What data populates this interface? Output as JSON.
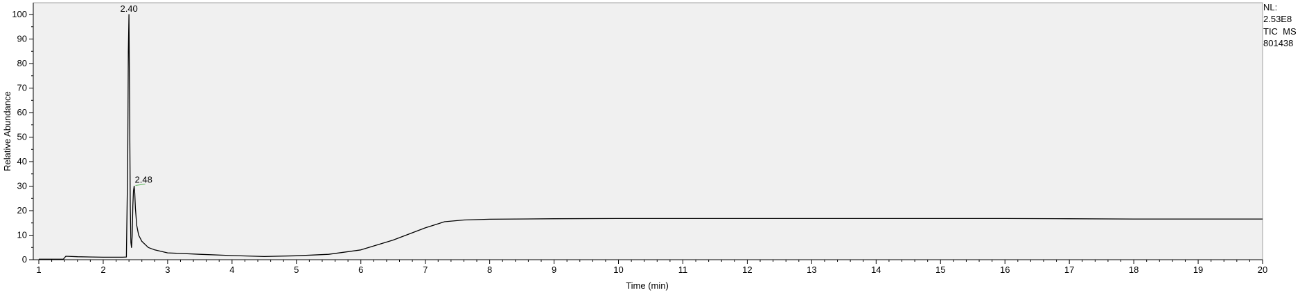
{
  "chart_data": {
    "type": "line",
    "title": "",
    "xlabel": "Time (min)",
    "ylabel": "Relative Abundance",
    "xlim": [
      1,
      20
    ],
    "ylim": [
      0,
      100
    ],
    "x_ticks": [
      "1",
      "2",
      "3",
      "4",
      "5",
      "6",
      "7",
      "8",
      "9",
      "10",
      "11",
      "12",
      "13",
      "14",
      "15",
      "16",
      "17",
      "18",
      "19",
      "20"
    ],
    "y_ticks": [
      "0",
      "10",
      "20",
      "30",
      "40",
      "50",
      "60",
      "70",
      "80",
      "90",
      "100"
    ],
    "grid": false,
    "legend": "none",
    "series": [
      {
        "color": "#000000",
        "x": [
          1.0,
          1.38,
          1.42,
          1.6,
          2.0,
          2.3,
          2.36,
          2.38,
          2.39,
          2.4,
          2.41,
          2.42,
          2.43,
          2.44,
          2.45,
          2.46,
          2.47,
          2.48,
          2.49,
          2.5,
          2.52,
          2.55,
          2.6,
          2.7,
          2.8,
          3.0,
          3.5,
          4.0,
          4.5,
          5.0,
          5.5,
          6.0,
          6.5,
          7.0,
          7.3,
          7.6,
          8.0,
          9.0,
          10.0,
          11.0,
          12.0,
          13.0,
          14.0,
          15.0,
          16.0,
          17.0,
          18.0,
          19.0,
          20.0
        ],
        "y": [
          0.2,
          0.2,
          1.4,
          1.2,
          1.0,
          1.0,
          1.1,
          40,
          85,
          100,
          60,
          22,
          7,
          5,
          10,
          22,
          28,
          30,
          27,
          21,
          14,
          10,
          7.5,
          5,
          4,
          2.8,
          2.2,
          1.7,
          1.3,
          1.6,
          2.2,
          4.0,
          8.0,
          13.0,
          15.5,
          16.2,
          16.5,
          16.7,
          16.8,
          16.8,
          16.8,
          16.8,
          16.8,
          16.8,
          16.8,
          16.7,
          16.6,
          16.6,
          16.6
        ]
      }
    ],
    "annotations": [
      {
        "label": "2.40",
        "x": 2.4,
        "y": 100
      },
      {
        "label": "2.48",
        "x": 2.48,
        "y": 30
      }
    ],
    "info": {
      "nl_label": "NL:",
      "nl_value": "2.53E8",
      "scan_type": "TIC  MS",
      "file_id": "801438"
    }
  }
}
